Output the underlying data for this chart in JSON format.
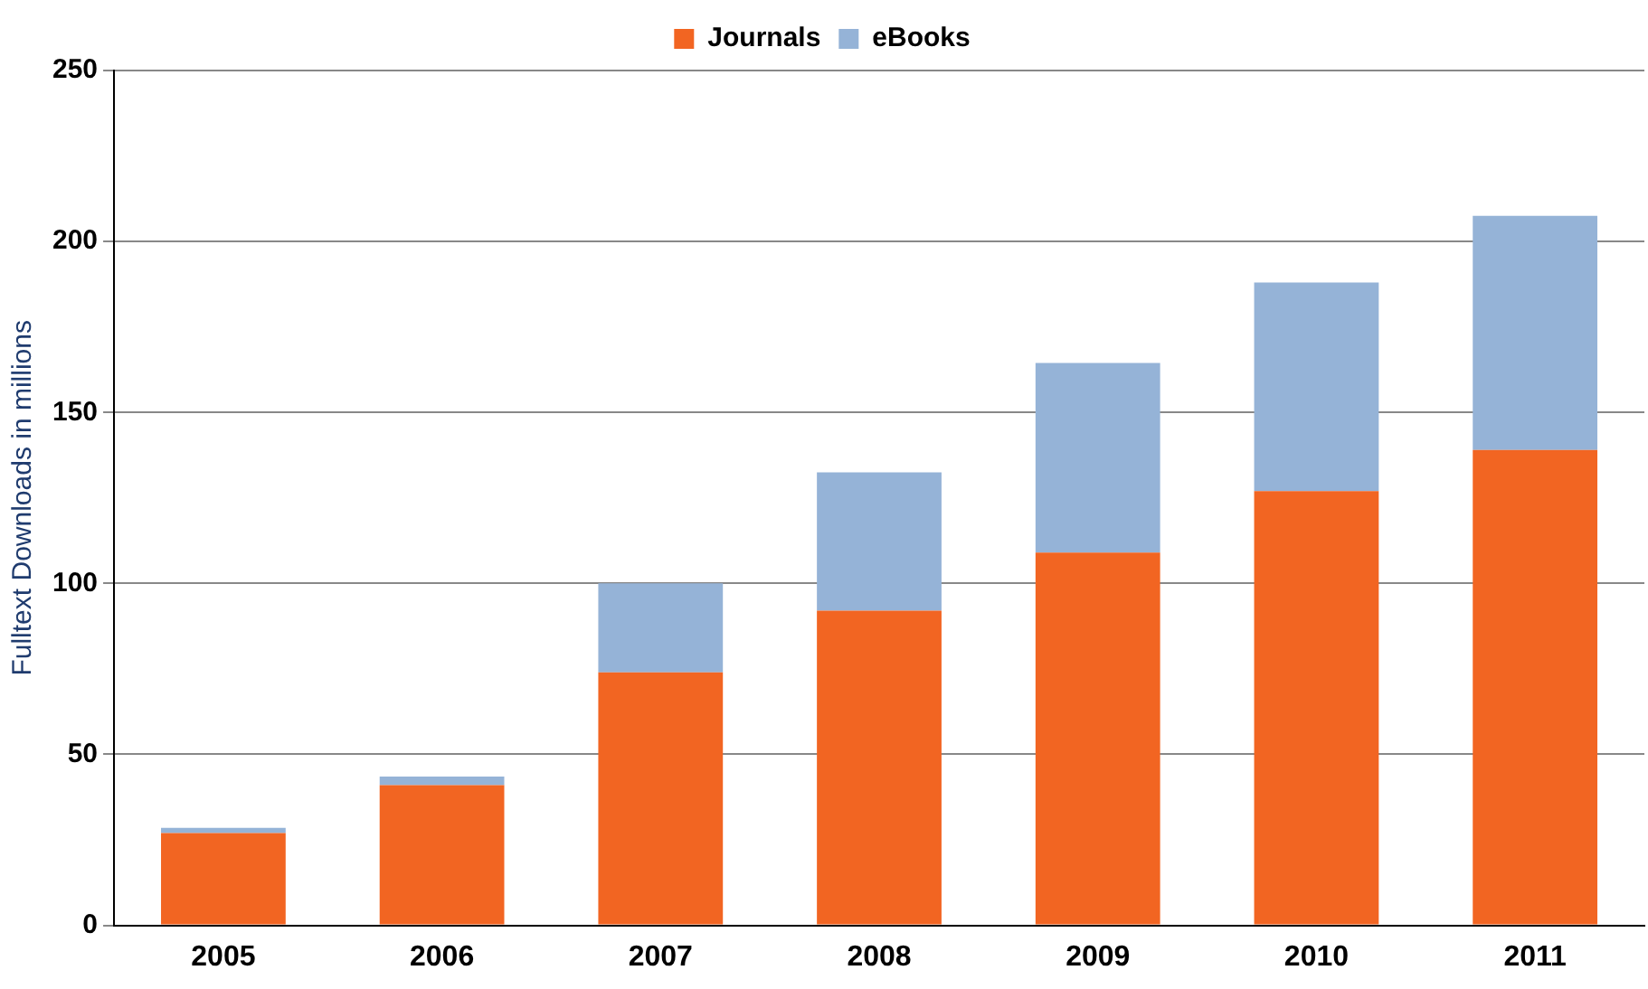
{
  "chart_data": {
    "type": "bar",
    "stacked": true,
    "ylabel": "Fulltext Downloads in millions",
    "categories": [
      "2005",
      "2006",
      "2007",
      "2008",
      "2009",
      "2010",
      "2011"
    ],
    "series": [
      {
        "name": "Journals",
        "color": "#f26522",
        "values": [
          27,
          41,
          74,
          92,
          109,
          127,
          139
        ]
      },
      {
        "name": "eBooks",
        "color": "#95b3d7",
        "values": [
          1.5,
          2.5,
          26,
          40.5,
          55.5,
          61,
          68.5
        ]
      }
    ],
    "ylim": [
      0,
      250
    ],
    "yticks": [
      0,
      50,
      100,
      150,
      200,
      250
    ],
    "grid": "y",
    "legend": "top"
  }
}
